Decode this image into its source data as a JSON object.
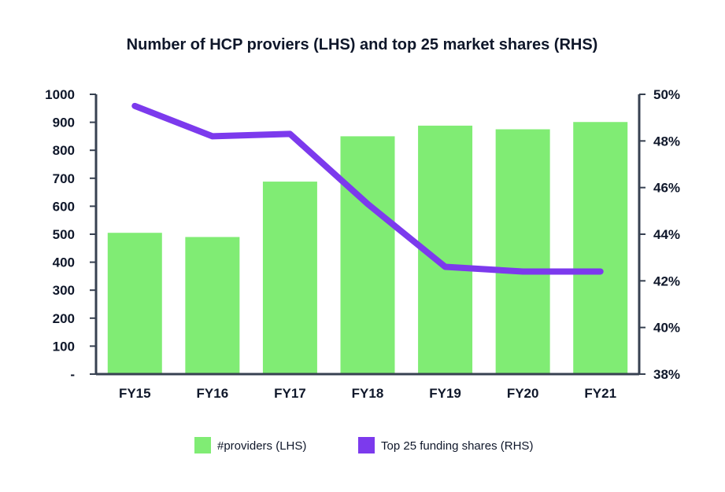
{
  "chart_data": {
    "type": "bar",
    "title": "Number of HCP proviers (LHS) and top 25 market shares (RHS)",
    "categories": [
      "FY15",
      "FY16",
      "FY17",
      "FY18",
      "FY19",
      "FY20",
      "FY21"
    ],
    "series": [
      {
        "name": "#providers (LHS)",
        "type": "bar",
        "axis": "left",
        "color": "#80ec74",
        "values": [
          505,
          490,
          688,
          850,
          888,
          875,
          901
        ]
      },
      {
        "name": "Top 25 funding shares (RHS)",
        "type": "line",
        "axis": "right",
        "color": "#7c3aed",
        "values": [
          49.5,
          48.2,
          48.3,
          45.3,
          42.6,
          42.4,
          42.4
        ]
      }
    ],
    "left_axis": {
      "ylim": [
        0,
        1000
      ],
      "ticks": [
        0,
        100,
        200,
        300,
        400,
        500,
        600,
        700,
        800,
        900,
        1000
      ],
      "tick_labels": [
        "-",
        "100",
        "200",
        "300",
        "400",
        "500",
        "600",
        "700",
        "800",
        "900",
        "1000"
      ]
    },
    "right_axis": {
      "ylim": [
        38,
        50
      ],
      "ticks": [
        38,
        40,
        42,
        44,
        46,
        48,
        50
      ],
      "tick_labels": [
        "38%",
        "40%",
        "42%",
        "44%",
        "46%",
        "48%",
        "50%"
      ]
    },
    "grid": false,
    "legend_position": "bottom",
    "axis_color": "#374151",
    "text_color": "#0f172a"
  }
}
